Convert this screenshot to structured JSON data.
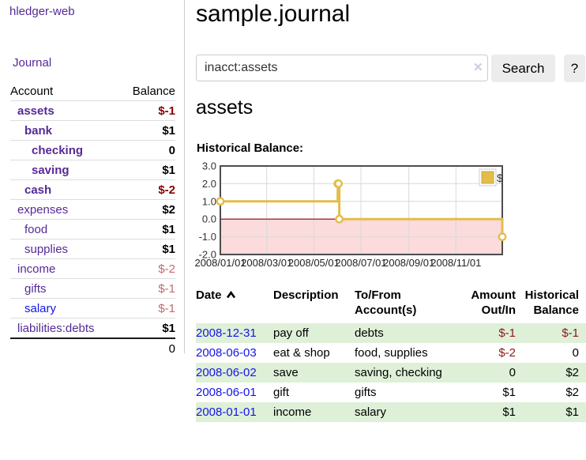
{
  "app": {
    "brand": "hledger-web"
  },
  "colors": {
    "link_purple": "#552a97",
    "link_blue": "#1414e8",
    "negative_strong": "#8b0000",
    "negative_table": "#8b1a1a",
    "negative_muted": "#c46a6a",
    "row_green": "#dff0d8"
  },
  "sidebar": {
    "journal_label": "Journal",
    "accounts": {
      "header_account": "Account",
      "header_balance": "Balance",
      "rows": [
        {
          "name": "assets",
          "indent": 1,
          "style": "bold",
          "link": "purple",
          "balance": "$-1",
          "bal_style": "neg-bold"
        },
        {
          "name": "bank",
          "indent": 2,
          "style": "bold",
          "link": "purple",
          "balance": "$1",
          "bal_style": "normal"
        },
        {
          "name": "checking",
          "indent": 3,
          "style": "bold",
          "link": "purple",
          "balance": "0",
          "bal_style": "normal"
        },
        {
          "name": "saving",
          "indent": 3,
          "style": "bold",
          "link": "purple",
          "balance": "$1",
          "bal_style": "normal"
        },
        {
          "name": "cash",
          "indent": 2,
          "style": "bold",
          "link": "purple",
          "balance": "$-2",
          "bal_style": "neg-bold"
        },
        {
          "name": "expenses",
          "indent": 1,
          "style": "normal",
          "link": "purple",
          "balance": "$2",
          "bal_style": "normal"
        },
        {
          "name": "food",
          "indent": 2,
          "style": "normal",
          "link": "purple",
          "balance": "$1",
          "bal_style": "normal"
        },
        {
          "name": "supplies",
          "indent": 2,
          "style": "normal",
          "link": "purple",
          "balance": "$1",
          "bal_style": "normal"
        },
        {
          "name": "income",
          "indent": 1,
          "style": "normal",
          "link": "purple",
          "balance": "$-2",
          "bal_style": "neg-muted"
        },
        {
          "name": "gifts",
          "indent": 2,
          "style": "normal",
          "link": "purple",
          "balance": "$-1",
          "bal_style": "neg-muted"
        },
        {
          "name": "salary",
          "indent": 2,
          "style": "normal",
          "link": "blue",
          "balance": "$-1",
          "bal_style": "neg-muted"
        },
        {
          "name": "liabilities:debts",
          "indent": 1,
          "style": "normal",
          "link": "purple",
          "balance": "$1",
          "bal_style": "normal"
        }
      ],
      "total": "0"
    }
  },
  "main": {
    "title": "sample.journal",
    "search": {
      "value": "inacct:assets",
      "clear_glyph": "✕",
      "button_label": "Search",
      "help_label": "?"
    },
    "account_heading": "assets"
  },
  "chart_data": {
    "type": "line",
    "step": true,
    "title": "Historical Balance:",
    "series": [
      {
        "name": "$",
        "color": "#e3bd4a",
        "points": [
          {
            "x": "2008-01-01",
            "y": 1
          },
          {
            "x": "2008-06-01",
            "y": 2
          },
          {
            "x": "2008-06-02",
            "y": 2
          },
          {
            "x": "2008-06-03",
            "y": 0
          },
          {
            "x": "2008-12-31",
            "y": -1
          }
        ]
      }
    ],
    "x_domain": [
      "2008-01-01",
      "2008-12-31"
    ],
    "x_ticks": [
      {
        "date": "2008-01-01",
        "label": "2008/01/01"
      },
      {
        "date": "2008-03-01",
        "label": "2008/03/01"
      },
      {
        "date": "2008-05-01",
        "label": "2008/05/01"
      },
      {
        "date": "2008-07-01",
        "label": "2008/07/01"
      },
      {
        "date": "2008-09-01",
        "label": "2008/09/01"
      },
      {
        "date": "2008-11-01",
        "label": "2008/11/01"
      }
    ],
    "y_ticks": [
      "3.0",
      "2.0",
      "1.0",
      "0.0",
      "-1.0",
      "-2.0"
    ],
    "ylim": [
      -2,
      3
    ],
    "legend": {
      "position": "top-right"
    },
    "grid": true,
    "colors": {
      "negative_region": "#fbdbdb",
      "zero_line": "#8b0000",
      "grid": "#d9d9d9",
      "frame": "#4d4d4d",
      "marker_fill": "#ffffff"
    }
  },
  "register": {
    "headers": {
      "date": "Date",
      "description": "Description",
      "tofrom1": "To/From",
      "tofrom2": "Account(s)",
      "amount1": "Amount",
      "amount2": "Out/In",
      "balance1": "Historical",
      "balance2": "Balance"
    },
    "rows": [
      {
        "date": "2008-12-31",
        "description": "pay off",
        "accounts": "debts",
        "amount": "$-1",
        "amount_neg": true,
        "balance": "$-1",
        "balance_neg": true
      },
      {
        "date": "2008-06-03",
        "description": "eat & shop",
        "accounts": "food, supplies",
        "amount": "$-2",
        "amount_neg": true,
        "balance": "0",
        "balance_neg": false
      },
      {
        "date": "2008-06-02",
        "description": "save",
        "accounts": "saving, checking",
        "amount": "0",
        "amount_neg": false,
        "balance": "$2",
        "balance_neg": false
      },
      {
        "date": "2008-06-01",
        "description": "gift",
        "accounts": "gifts",
        "amount": "$1",
        "amount_neg": false,
        "balance": "$2",
        "balance_neg": false
      },
      {
        "date": "2008-01-01",
        "description": "income",
        "accounts": "salary",
        "amount": "$1",
        "amount_neg": false,
        "balance": "$1",
        "balance_neg": false
      }
    ]
  }
}
